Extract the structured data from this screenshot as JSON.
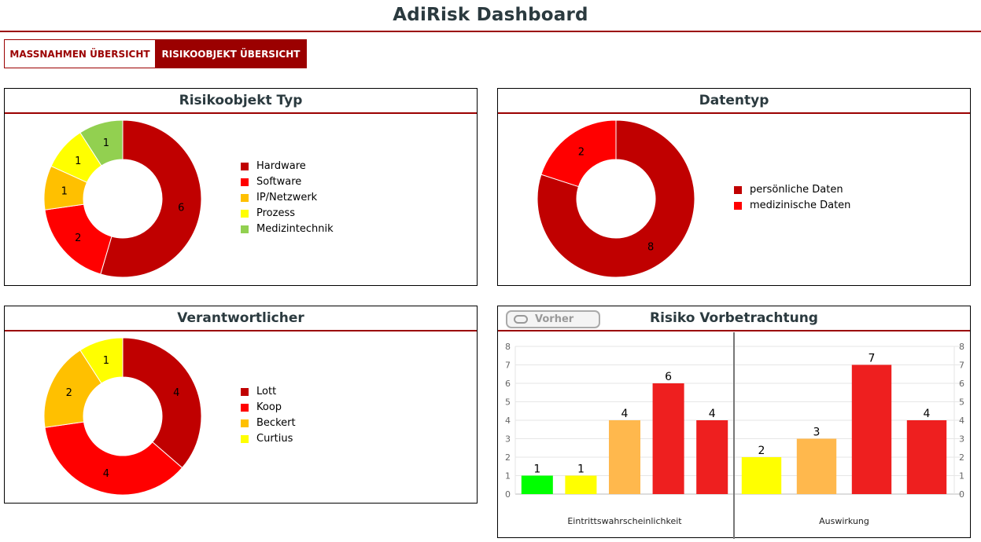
{
  "header": {
    "title": "AdiRisk Dashboard"
  },
  "tabs": [
    {
      "label": "MASSNAHMEN ÜBERSICHT",
      "active": false
    },
    {
      "label": "RISIKOOBJEKT ÜBERSICHT",
      "active": true
    }
  ],
  "chart_data": [
    {
      "id": "typ",
      "type": "pie",
      "title": "Risikoobjekt Typ",
      "legend_position": "right",
      "labels": [
        "Hardware",
        "Software",
        "IP/Netzwerk",
        "Prozess",
        "Medizintechnik"
      ],
      "values": [
        6,
        2,
        1,
        1,
        1
      ],
      "colors": [
        "#c00000",
        "#ff0000",
        "#ffc000",
        "#ffff00",
        "#92d050"
      ]
    },
    {
      "id": "datentyp",
      "type": "pie",
      "title": "Datentyp",
      "legend_position": "right",
      "labels": [
        "persönliche Daten",
        "medizinische Daten"
      ],
      "values": [
        8,
        2
      ],
      "colors": [
        "#c00000",
        "#ff0000"
      ]
    },
    {
      "id": "verantw",
      "type": "pie",
      "title": "Verantwortlicher",
      "legend_position": "right",
      "labels": [
        "Lott",
        "Koop",
        "Beckert",
        "Curtius"
      ],
      "values": [
        4,
        4,
        2,
        1
      ],
      "colors": [
        "#c00000",
        "#ff0000",
        "#ffc000",
        "#ffff00"
      ]
    },
    {
      "id": "risiko",
      "type": "bar",
      "title": "Risiko Vorbetrachtung",
      "ylim": [
        0,
        8
      ],
      "yticks": [
        "0",
        "1",
        "2",
        "3",
        "4",
        "5",
        "6",
        "7",
        "8"
      ],
      "grid": true,
      "groups": [
        {
          "label": "Eintrittswahrscheinlichkeit",
          "values": [
            1,
            1,
            4,
            6,
            4
          ],
          "colors": [
            "#00ff00",
            "#ffff00",
            "#ffb84d",
            "#ee1f1f",
            "#ee1f1f"
          ]
        },
        {
          "label": "Auswirkung",
          "values": [
            2,
            3,
            7,
            4
          ],
          "colors": [
            "#ffff00",
            "#ffb84d",
            "#ee1f1f",
            "#ee1f1f"
          ]
        }
      ]
    }
  ],
  "risiko_toggle": {
    "label": "Vorher",
    "on": false
  }
}
